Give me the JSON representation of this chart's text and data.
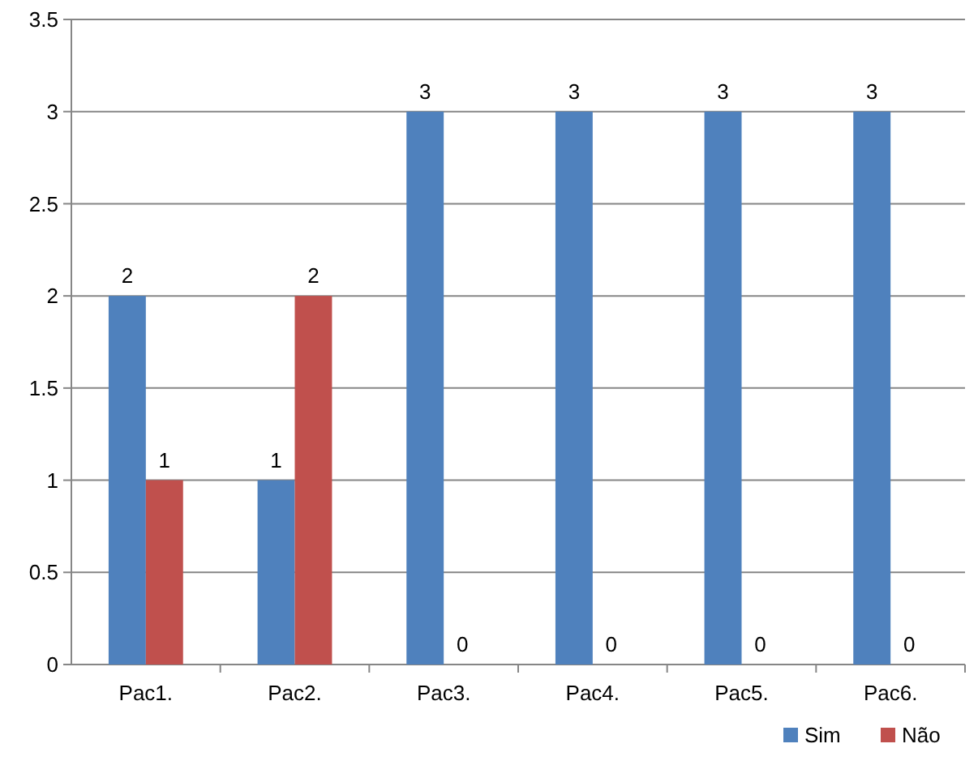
{
  "chart_data": {
    "type": "bar",
    "categories": [
      "Pac1.",
      "Pac2.",
      "Pac3.",
      "Pac4.",
      "Pac5.",
      "Pac6."
    ],
    "series": [
      {
        "name": "Sim",
        "color": "#4f81bd",
        "values": [
          2,
          1,
          3,
          3,
          3,
          3
        ]
      },
      {
        "name": "Não",
        "color": "#c0504d",
        "values": [
          1,
          2,
          0,
          0,
          0,
          0
        ]
      }
    ],
    "ylim": [
      0,
      3.5
    ],
    "yticks": [
      0,
      0.5,
      1,
      1.5,
      2,
      2.5,
      3,
      3.5
    ],
    "grid": "y",
    "legend": "bottom right",
    "data_labels": true
  }
}
